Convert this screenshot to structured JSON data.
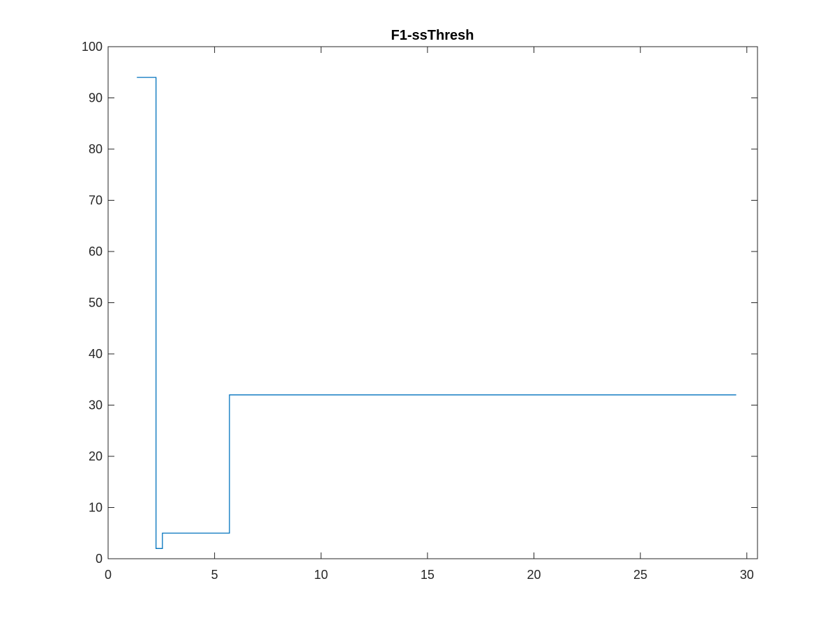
{
  "chart_data": {
    "type": "line",
    "title": "F1-ssThresh",
    "xlabel": "",
    "ylabel": "",
    "xlim": [
      0,
      30.5
    ],
    "ylim": [
      0,
      100
    ],
    "x_ticks": [
      0,
      5,
      10,
      15,
      20,
      25,
      30
    ],
    "y_ticks": [
      0,
      10,
      20,
      30,
      40,
      50,
      60,
      70,
      80,
      90,
      100
    ],
    "x_tick_labels": [
      "0",
      "5",
      "10",
      "15",
      "20",
      "25",
      "30"
    ],
    "y_tick_labels": [
      "0",
      "10",
      "20",
      "30",
      "40",
      "50",
      "60",
      "70",
      "80",
      "90",
      "100"
    ],
    "grid": false,
    "legend": "none",
    "series": [
      {
        "color": "#0072BD",
        "step": true,
        "x": [
          1.35,
          2.25,
          2.25,
          2.55,
          2.55,
          5.7,
          5.7,
          29.5
        ],
        "y": [
          94,
          94,
          2,
          2,
          5,
          5,
          32,
          32
        ]
      }
    ]
  }
}
